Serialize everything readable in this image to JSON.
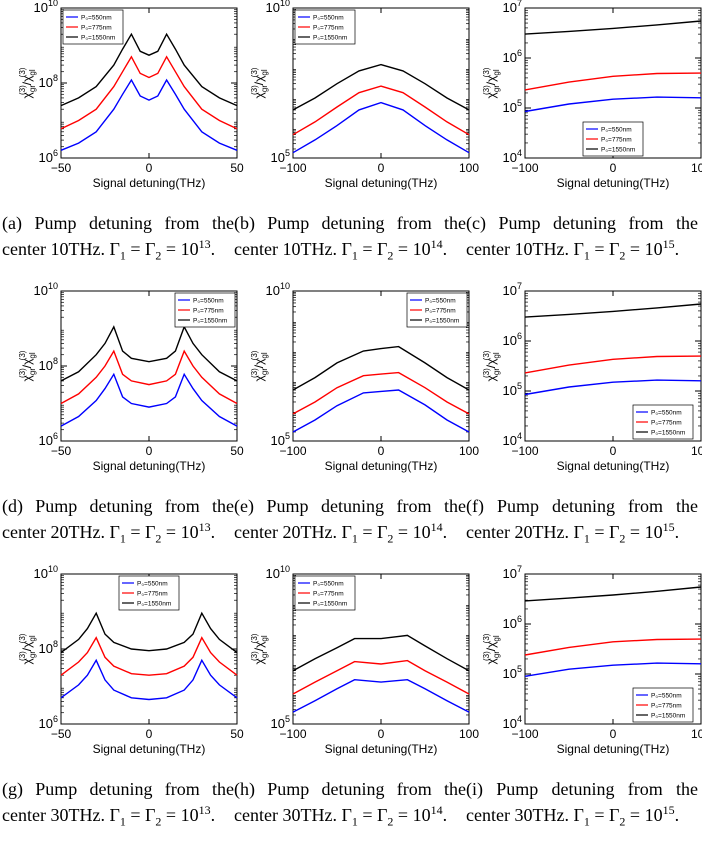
{
  "figure": {
    "legend_entries": [
      "P₀=550nm",
      "P₀=775nm",
      "P₀=1550nm"
    ],
    "ylabel": "χgr(3)/χgl(3)",
    "colors": {
      "550": "#0000ff",
      "775": "#ff0000",
      "1550": "#000000"
    },
    "panels": [
      {
        "id": "a",
        "caption_head": "(a) Pump detuning from the center 10THz.",
        "gamma_exp": "13"
      },
      {
        "id": "b",
        "caption_head": "(b) Pump detuning from the center 10THz.",
        "gamma_exp": "14"
      },
      {
        "id": "c",
        "caption_head": "(c) Pump detuning from the center 10THz.",
        "gamma_exp": "15"
      },
      {
        "id": "d",
        "caption_head": "(d) Pump detuning from the center 20THz.",
        "gamma_exp": "13"
      },
      {
        "id": "e",
        "caption_head": "(e) Pump detuning from the center 20THz.",
        "gamma_exp": "14"
      },
      {
        "id": "f",
        "caption_head": "(f) Pump detuning from the center 20THz.",
        "gamma_exp": "15"
      },
      {
        "id": "g",
        "caption_head": "(g) Pump detuning from the center 30THz.",
        "gamma_exp": "13"
      },
      {
        "id": "h",
        "caption_head": "(h) Pump detuning from the center 30THz.",
        "gamma_exp": "14"
      },
      {
        "id": "i",
        "caption_head": "(i) Pump detuning from the center 30THz.",
        "gamma_exp": "15"
      }
    ]
  },
  "chart_data": [
    {
      "panel": "a",
      "type": "line",
      "xlabel": "Signal detuning(THz)",
      "ylabel": "χgr(3)/χgl(3)",
      "xlim": [
        -50,
        50
      ],
      "ylim": [
        1000000.0,
        10000000000.0
      ],
      "yscale": "log",
      "yticks": [
        "10^6",
        "10^8",
        "10^10"
      ],
      "xticks": [
        "-50",
        "0",
        "50"
      ],
      "x": [
        -50,
        -40,
        -30,
        -20,
        -15,
        -10,
        -5,
        0,
        5,
        10,
        15,
        20,
        30,
        40,
        50
      ],
      "series": [
        {
          "name": "P₀=550nm",
          "values": [
            1600000.0,
            2500000.0,
            5000000.0,
            20000000.0,
            50000000.0,
            120000000.0,
            45000000.0,
            35000000.0,
            45000000.0,
            120000000.0,
            50000000.0,
            20000000.0,
            5000000.0,
            2500000.0,
            1600000.0
          ]
        },
        {
          "name": "P₀=775nm",
          "values": [
            6000000.0,
            10000000.0,
            20000000.0,
            80000000.0,
            200000000.0,
            500000000.0,
            180000000.0,
            140000000.0,
            180000000.0,
            500000000.0,
            200000000.0,
            80000000.0,
            20000000.0,
            10000000.0,
            6000000.0
          ]
        },
        {
          "name": "P₀=1550nm",
          "values": [
            25000000.0,
            40000000.0,
            80000000.0,
            300000000.0,
            800000000.0,
            2000000000.0,
            700000000.0,
            550000000.0,
            700000000.0,
            2000000000.0,
            800000000.0,
            300000000.0,
            80000000.0,
            40000000.0,
            25000000.0
          ]
        }
      ],
      "legend": "top-left"
    },
    {
      "panel": "b",
      "type": "line",
      "xlabel": "Signal detuning(THz)",
      "ylabel": "χgr(3)/χgl(3)",
      "xlim": [
        -100,
        100
      ],
      "ylim": [
        100000.0,
        10000000000.0
      ],
      "yscale": "log",
      "yticks": [
        "10^5",
        "10^10"
      ],
      "xticks": [
        "-100",
        "0",
        "100"
      ],
      "x": [
        -100,
        -75,
        -50,
        -25,
        0,
        25,
        50,
        75,
        100
      ],
      "series": [
        {
          "name": "P₀=550nm",
          "values": [
            150000.0,
            400000.0,
            1200000.0,
            4000000.0,
            7000000.0,
            4000000.0,
            1200000.0,
            400000.0,
            150000.0
          ]
        },
        {
          "name": "P₀=775nm",
          "values": [
            600000.0,
            1600000.0,
            5000000.0,
            15000000.0,
            25000000.0,
            15000000.0,
            5000000.0,
            1600000.0,
            600000.0
          ]
        },
        {
          "name": "P₀=1550nm",
          "values": [
            4000000.0,
            10000000.0,
            30000000.0,
            80000000.0,
            130000000.0,
            80000000.0,
            30000000.0,
            10000000.0,
            4000000.0
          ]
        }
      ],
      "legend": "top-left"
    },
    {
      "panel": "c",
      "type": "line",
      "xlabel": "Signal detuning(THz)",
      "ylabel": "χgr(3)/χgl(3)",
      "xlim": [
        -100,
        100
      ],
      "ylim": [
        10000.0,
        10000000.0
      ],
      "yscale": "log",
      "yticks": [
        "10^4",
        "10^5",
        "10^6",
        "10^7"
      ],
      "xticks": [
        "-100",
        "0",
        "100"
      ],
      "x": [
        -100,
        -50,
        0,
        50,
        100
      ],
      "series": [
        {
          "name": "P₀=550nm",
          "values": [
            85000.0,
            120000.0,
            150000.0,
            165000.0,
            160000.0
          ]
        },
        {
          "name": "P₀=775nm",
          "values": [
            230000.0,
            330000.0,
            430000.0,
            490000.0,
            500000.0
          ]
        },
        {
          "name": "P₀=1550nm",
          "values": [
            3000000.0,
            3400000.0,
            3900000.0,
            4600000.0,
            5500000.0
          ]
        }
      ],
      "legend": "bottom-center"
    },
    {
      "panel": "d",
      "type": "line",
      "xlabel": "Signal detuning(THz)",
      "ylabel": "χgr(3)/χgl(3)",
      "xlim": [
        -50,
        50
      ],
      "ylim": [
        1000000.0,
        10000000000.0
      ],
      "yscale": "log",
      "yticks": [
        "10^6",
        "10^8",
        "10^10"
      ],
      "xticks": [
        "-50",
        "0",
        "50"
      ],
      "x": [
        -50,
        -40,
        -30,
        -25,
        -20,
        -15,
        -10,
        0,
        10,
        15,
        20,
        25,
        30,
        40,
        50
      ],
      "series": [
        {
          "name": "P₀=550nm",
          "values": [
            2500000.0,
            4500000.0,
            12000000.0,
            25000000.0,
            60000000.0,
            15000000.0,
            10000000.0,
            8000000.0,
            10000000.0,
            15000000.0,
            60000000.0,
            25000000.0,
            12000000.0,
            4500000.0,
            2500000.0
          ]
        },
        {
          "name": "P₀=775nm",
          "values": [
            10000000.0,
            18000000.0,
            50000000.0,
            100000000.0,
            250000000.0,
            60000000.0,
            40000000.0,
            32000000.0,
            40000000.0,
            60000000.0,
            250000000.0,
            100000000.0,
            50000000.0,
            18000000.0,
            10000000.0
          ]
        },
        {
          "name": "P₀=1550nm",
          "values": [
            40000000.0,
            70000000.0,
            200000000.0,
            400000000.0,
            1100000000.0,
            250000000.0,
            160000000.0,
            130000000.0,
            160000000.0,
            250000000.0,
            1100000000.0,
            400000000.0,
            200000000.0,
            70000000.0,
            40000000.0
          ]
        }
      ],
      "legend": "top-right"
    },
    {
      "panel": "e",
      "type": "line",
      "xlabel": "Signal detuning(THz)",
      "ylabel": "χgr(3)/χgl(3)",
      "xlim": [
        -100,
        100
      ],
      "ylim": [
        100000.0,
        10000000000.0
      ],
      "yscale": "log",
      "yticks": [
        "10^5",
        "10^10"
      ],
      "xticks": [
        "-100",
        "0",
        "100"
      ],
      "x": [
        -100,
        -75,
        -50,
        -20,
        0,
        20,
        50,
        75,
        100
      ],
      "series": [
        {
          "name": "P₀=550nm",
          "values": [
            200000.0,
            500000.0,
            1500000.0,
            4000000.0,
            4500000.0,
            5000000.0,
            1600000.0,
            500000.0,
            200000.0
          ]
        },
        {
          "name": "P₀=775nm",
          "values": [
            800000.0,
            2000000.0,
            6000000.0,
            15000000.0,
            17000000.0,
            19000000.0,
            6000000.0,
            2000000.0,
            800000.0
          ]
        },
        {
          "name": "P₀=1550nm",
          "values": [
            5000000.0,
            13000000.0,
            40000000.0,
            100000000.0,
            120000000.0,
            140000000.0,
            40000000.0,
            13000000.0,
            5000000.0
          ]
        }
      ],
      "legend": "top-right"
    },
    {
      "panel": "f",
      "type": "line",
      "xlabel": "Signal detuning(THz)",
      "ylabel": "χgr(3)/χgl(3)",
      "xlim": [
        -100,
        100
      ],
      "ylim": [
        10000.0,
        10000000.0
      ],
      "yscale": "log",
      "yticks": [
        "10^4",
        "10^5",
        "10^6",
        "10^7"
      ],
      "xticks": [
        "-100",
        "0",
        "100"
      ],
      "x": [
        -100,
        -50,
        0,
        50,
        100
      ],
      "series": [
        {
          "name": "P₀=550nm",
          "values": [
            85000.0,
            120000.0,
            150000.0,
            165000.0,
            160000.0
          ]
        },
        {
          "name": "P₀=775nm",
          "values": [
            230000.0,
            330000.0,
            430000.0,
            490000.0,
            500000.0
          ]
        },
        {
          "name": "P₀=1550nm",
          "values": [
            3000000.0,
            3400000.0,
            3900000.0,
            4600000.0,
            5500000.0
          ]
        }
      ],
      "legend": "bottom-right"
    },
    {
      "panel": "g",
      "type": "line",
      "xlabel": "Signal detuning(THz)",
      "ylabel": "χgr(3)/χgl(3)",
      "xlim": [
        -50,
        50
      ],
      "ylim": [
        1000000.0,
        10000000000.0
      ],
      "yscale": "log",
      "yticks": [
        "10^6",
        "10^8",
        "10^10"
      ],
      "xticks": [
        "-50",
        "0",
        "50"
      ],
      "x": [
        -50,
        -40,
        -35,
        -30,
        -25,
        -20,
        -10,
        0,
        10,
        20,
        25,
        30,
        35,
        40,
        50
      ],
      "series": [
        {
          "name": "P₀=550nm",
          "values": [
            5000000.0,
            11000000.0,
            20000000.0,
            50000000.0,
            15000000.0,
            8000000.0,
            5000000.0,
            4500000.0,
            5000000.0,
            8000000.0,
            15000000.0,
            50000000.0,
            20000000.0,
            11000000.0,
            5000000.0
          ]
        },
        {
          "name": "P₀=775nm",
          "values": [
            20000000.0,
            45000000.0,
            80000000.0,
            200000000.0,
            60000000.0,
            35000000.0,
            22000000.0,
            20000000.0,
            22000000.0,
            35000000.0,
            60000000.0,
            200000000.0,
            80000000.0,
            45000000.0,
            20000000.0
          ]
        },
        {
          "name": "P₀=1550nm",
          "values": [
            80000000.0,
            180000000.0,
            350000000.0,
            900000000.0,
            250000000.0,
            150000000.0,
            100000000.0,
            90000000.0,
            100000000.0,
            150000000.0,
            250000000.0,
            900000000.0,
            350000000.0,
            180000000.0,
            80000000.0
          ]
        }
      ],
      "legend": "top-center"
    },
    {
      "panel": "h",
      "type": "line",
      "xlabel": "Signal detuning(THz)",
      "ylabel": "χgr(3)/χgl(3)",
      "xlim": [
        -100,
        100
      ],
      "ylim": [
        100000.0,
        10000000000.0
      ],
      "yscale": "log",
      "yticks": [
        "10^5",
        "10^10"
      ],
      "xticks": [
        "-100",
        "0",
        "100"
      ],
      "x": [
        -100,
        -75,
        -50,
        -30,
        0,
        30,
        50,
        75,
        100
      ],
      "series": [
        {
          "name": "P₀=550nm",
          "values": [
            250000.0,
            600000.0,
            1500000.0,
            3000000.0,
            2500000.0,
            3000000.0,
            1500000.0,
            600000.0,
            250000.0
          ]
        },
        {
          "name": "P₀=775nm",
          "values": [
            1000000.0,
            2500000.0,
            6000000.0,
            12000000.0,
            10000000.0,
            13000000.0,
            6000000.0,
            2500000.0,
            1000000.0
          ]
        },
        {
          "name": "P₀=1550nm",
          "values": [
            6000000.0,
            15000000.0,
            35000000.0,
            70000000.0,
            70000000.0,
            90000000.0,
            40000000.0,
            15000000.0,
            6000000.0
          ]
        }
      ],
      "legend": "top-left"
    },
    {
      "panel": "i",
      "type": "line",
      "xlabel": "Signal detuning(THz)",
      "ylabel": "χgr(3)/χgl(3)",
      "xlim": [
        -100,
        100
      ],
      "ylim": [
        10000.0,
        10000000.0
      ],
      "yscale": "log",
      "yticks": [
        "10^4",
        "10^5",
        "10^6",
        "10^7"
      ],
      "xticks": [
        "-100",
        "0",
        "100"
      ],
      "x": [
        -100,
        -50,
        0,
        50,
        100
      ],
      "series": [
        {
          "name": "P₀=550nm",
          "values": [
            90000.0,
            125000.0,
            150000.0,
            165000.0,
            160000.0
          ]
        },
        {
          "name": "P₀=775nm",
          "values": [
            240000.0,
            340000.0,
            440000.0,
            490000.0,
            500000.0
          ]
        },
        {
          "name": "P₀=1550nm",
          "values": [
            2900000.0,
            3300000.0,
            3800000.0,
            4500000.0,
            5500000.0
          ]
        }
      ],
      "legend": "bottom-right"
    }
  ]
}
